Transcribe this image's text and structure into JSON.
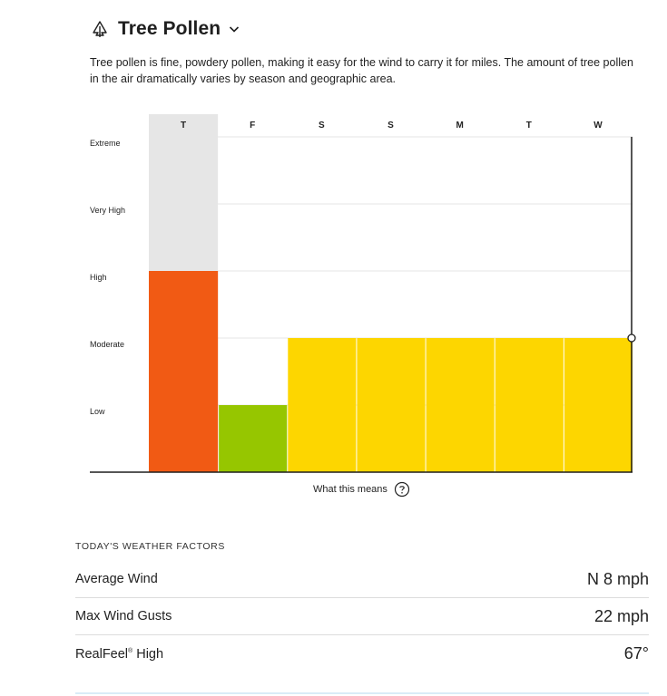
{
  "header": {
    "title": "Tree Pollen",
    "icon": "tree-icon"
  },
  "description": "Tree pollen is fine, powdery pollen, making it easy for the wind to carry it for miles. The amount of tree pollen in the air dramatically varies by season and geographic area.",
  "chart_data": {
    "type": "bar",
    "categories": [
      "T",
      "F",
      "S",
      "S",
      "M",
      "T",
      "W"
    ],
    "levels": [
      "Low",
      "Moderate",
      "High",
      "Very High",
      "Extreme"
    ],
    "values": [
      3,
      1,
      2,
      2,
      2,
      2,
      2
    ],
    "value_unit": "level index (1=Low, 2=Moderate, 3=High, 4=Very High, 5=Extreme)",
    "ylim": [
      0,
      5
    ],
    "highlighted_category_index": 0,
    "colors": {
      "Low": "#96c600",
      "Moderate": "#fdd600",
      "High": "#f15a14",
      "highlight_column": "#e6e6e6"
    },
    "grid": true
  },
  "info_link": {
    "label": "What this means",
    "icon": "question-circle-icon"
  },
  "factors": {
    "heading": "TODAY'S WEATHER FACTORS",
    "rows": [
      {
        "label": "Average Wind",
        "value": "N 8 mph"
      },
      {
        "label": "Max Wind Gusts",
        "value": "22 mph"
      },
      {
        "label": "RealFeel",
        "label_sup": "®",
        "label_suffix": " High",
        "value": "67°"
      }
    ]
  }
}
